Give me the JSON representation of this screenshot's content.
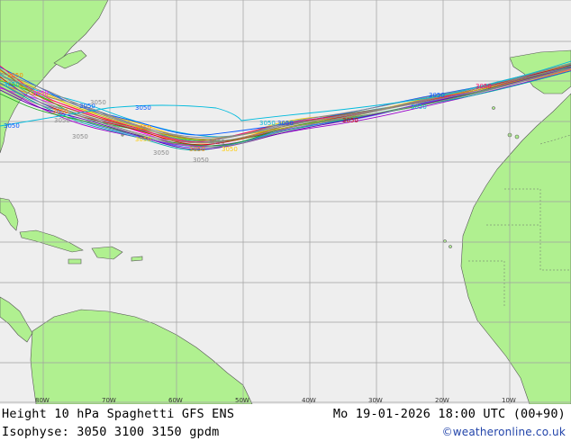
{
  "footer": {
    "title_left": "Height 10 hPa Spaghetti  GFS ENS",
    "title_right": "Mo 19-01-2026 18:00 UTC (00+90)",
    "isophyse": "Isophyse: 3050 3100 3150 gpdm",
    "credit": "©weatheronline.co.uk"
  },
  "longitude_labels": [
    "80W",
    "70W",
    "60W",
    "50W",
    "40W",
    "30W",
    "20W",
    "10W"
  ],
  "contour_labels": [
    "3050",
    "3050",
    "3050",
    "3050",
    "3050",
    "3050",
    "3050",
    "3050",
    "3050",
    "3050",
    "3050",
    "3050",
    "3050",
    "3050",
    "3050",
    "3050",
    "3050",
    "3050",
    "3050",
    "3050",
    "3050",
    "3050",
    "3050"
  ],
  "colors": {
    "ocean": "#eeeeee",
    "land": "#b0f090",
    "grid": "#a0a0a0",
    "members": [
      "#ff00ff",
      "#00bbdd",
      "#ff8800",
      "#ffcc00",
      "#00cc44",
      "#0055ff",
      "#cc0000",
      "#9900cc",
      "#888888",
      "#00aaaa",
      "#aa6600",
      "#4466ff",
      "#ff0066",
      "#22aa22",
      "#c8c800",
      "#6600aa"
    ]
  }
}
